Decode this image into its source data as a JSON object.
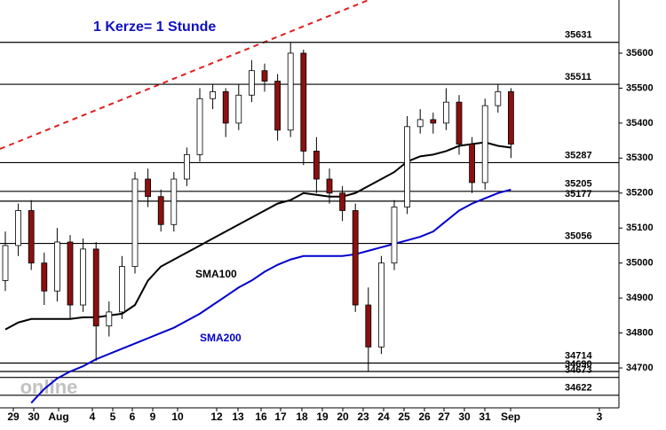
{
  "chart_data": {
    "type": "candlestick",
    "annotation": "1 Kerze= 1 Stunde",
    "watermark": "online",
    "ylim": [
      34586,
      35752
    ],
    "yticks": [
      34700,
      34800,
      34900,
      35000,
      35100,
      35200,
      35300,
      35400,
      35500,
      35600
    ],
    "x_tick_labels": [
      "29",
      "30",
      "Aug",
      "4",
      "5",
      "6",
      "9",
      "10",
      "12",
      "13",
      "16",
      "17",
      "18",
      "19",
      "20",
      "23",
      "24",
      "25",
      "26",
      "27",
      "30",
      "31",
      "Sep",
      "3"
    ],
    "levels": [
      35631,
      35511,
      35287,
      35205,
      35177,
      35056,
      34714,
      34690,
      34673,
      34622
    ],
    "up_color": "#ffffff",
    "down_color": "#8b1010",
    "open": [
      34950,
      35050,
      35150,
      35000,
      34920,
      35060,
      34880,
      35040,
      34820,
      34860,
      34990,
      35240,
      35190,
      35110,
      35240,
      35310,
      35470,
      35490,
      35400,
      35480,
      35550,
      35520,
      35380,
      35600,
      35320,
      35240,
      35200,
      35150,
      34880,
      34760,
      35000,
      35160,
      35390,
      35410,
      35400,
      35460,
      35340,
      35230,
      35450,
      35490
    ],
    "high": [
      35090,
      35170,
      35180,
      35030,
      35100,
      35080,
      35070,
      35060,
      34890,
      35020,
      35260,
      35270,
      35210,
      35260,
      35330,
      35500,
      35510,
      35500,
      35510,
      35580,
      35570,
      35540,
      35630,
      35610,
      35360,
      35270,
      35220,
      35170,
      34930,
      35020,
      35180,
      35420,
      35440,
      35430,
      35500,
      35480,
      35360,
      35470,
      35510,
      35500
    ],
    "low": [
      34920,
      35020,
      34980,
      34880,
      34890,
      34840,
      34860,
      34720,
      34790,
      34840,
      34970,
      35160,
      35090,
      35090,
      35220,
      35290,
      35440,
      35360,
      35380,
      35460,
      35490,
      35350,
      35360,
      35280,
      35200,
      35170,
      35120,
      34860,
      34690,
      34740,
      34980,
      35140,
      35370,
      35370,
      35380,
      35310,
      35200,
      35210,
      35430,
      35300
    ],
    "close": [
      35050,
      35150,
      35000,
      34920,
      35060,
      34880,
      35040,
      34820,
      34860,
      34990,
      35240,
      35190,
      35110,
      35240,
      35310,
      35470,
      35490,
      35400,
      35480,
      35550,
      35520,
      35380,
      35600,
      35320,
      35240,
      35200,
      35150,
      34880,
      34760,
      35000,
      35160,
      35390,
      35410,
      35400,
      35460,
      35340,
      35230,
      35450,
      35490,
      35340
    ],
    "series": [
      {
        "name": "SMA100",
        "color": "#000000",
        "values": [
          34810,
          34830,
          34840,
          34840,
          34840,
          34840,
          34845,
          34845,
          34850,
          34855,
          34880,
          34950,
          34990,
          35010,
          35030,
          35050,
          35070,
          35090,
          35110,
          35130,
          35150,
          35170,
          35180,
          35200,
          35195,
          35190,
          35190,
          35200,
          35220,
          35240,
          35260,
          35290,
          35305,
          35310,
          35320,
          35335,
          35340,
          35345,
          35335,
          35330
        ]
      },
      {
        "name": "SMA200",
        "color": "#0000cc",
        "values": [
          null,
          null,
          34600,
          34640,
          34670,
          34690,
          34705,
          34725,
          34740,
          34755,
          34770,
          34785,
          34800,
          34815,
          34835,
          34855,
          34880,
          34905,
          34930,
          34950,
          34975,
          34995,
          35010,
          35020,
          35020,
          35020,
          35020,
          35025,
          35035,
          35045,
          35055,
          35065,
          35075,
          35090,
          35120,
          35150,
          35170,
          35185,
          35200,
          35210
        ]
      }
    ]
  }
}
